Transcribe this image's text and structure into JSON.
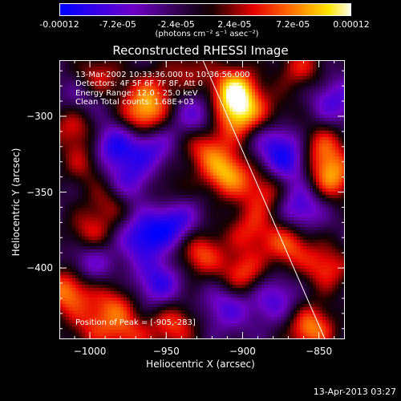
{
  "chart_data": {
    "type": "heatmap",
    "title": "Reconstructed RHESSI Image",
    "xlabel": "Heliocentric X (arcsec)",
    "ylabel": "Heliocentric Y (arcsec)",
    "xlim": [
      -1020,
      -833
    ],
    "ylim": [
      -447,
      -263
    ],
    "xticks": [
      -1000,
      -950,
      -900,
      -850
    ],
    "yticks": [
      -300,
      -350,
      -400
    ],
    "colorbar": {
      "ticks": [
        "-0.00012",
        "-7.2e-05",
        "-2.4e-05",
        "2.4e-05",
        "7.2e-05",
        "0.00012"
      ],
      "min": -0.00012,
      "max": 0.00012,
      "units": "(photons cm⁻² s⁻¹ asec⁻²)"
    },
    "annotations": [
      "13-Mar-2002 10:33:36.000 to 10:36:56.000",
      "Detectors: 4F 5F 6F 7F 8F, Att 0",
      "Energy Range: 12.0 - 25.0 keV",
      "Clean    Total counts: 1.68E+03"
    ],
    "peak_label": "Position of Peak = [-905,-283]",
    "peak": [
      -905,
      -283
    ],
    "limb_line": [
      [
        -926,
        -263
      ],
      [
        -846,
        -447
      ]
    ],
    "blobs": [
      {
        "x": -905,
        "y": -283,
        "v": 1.0
      },
      {
        "x": -903,
        "y": -300,
        "v": 0.8
      },
      {
        "x": -910,
        "y": -338,
        "v": 0.85
      },
      {
        "x": -925,
        "y": -320,
        "v": 0.6
      },
      {
        "x": -965,
        "y": -300,
        "v": 0.75
      },
      {
        "x": -960,
        "y": -285,
        "v": 0.5
      },
      {
        "x": -995,
        "y": -275,
        "v": 0.55
      },
      {
        "x": -1010,
        "y": -305,
        "v": 0.6
      },
      {
        "x": -1003,
        "y": -330,
        "v": 0.45
      },
      {
        "x": -985,
        "y": -355,
        "v": 0.5
      },
      {
        "x": -1000,
        "y": -378,
        "v": 0.55
      },
      {
        "x": -1015,
        "y": -415,
        "v": 0.8
      },
      {
        "x": -985,
        "y": -425,
        "v": 0.55
      },
      {
        "x": -945,
        "y": -438,
        "v": 0.6
      },
      {
        "x": -928,
        "y": -390,
        "v": 0.65
      },
      {
        "x": -900,
        "y": -405,
        "v": 0.65
      },
      {
        "x": -895,
        "y": -375,
        "v": 0.5
      },
      {
        "x": -885,
        "y": -350,
        "v": 0.55
      },
      {
        "x": -870,
        "y": -385,
        "v": 0.65
      },
      {
        "x": -855,
        "y": -440,
        "v": 0.8
      },
      {
        "x": -845,
        "y": -400,
        "v": 0.6
      },
      {
        "x": -842,
        "y": -340,
        "v": 0.8
      },
      {
        "x": -848,
        "y": -320,
        "v": 0.6
      },
      {
        "x": -862,
        "y": -268,
        "v": 0.5
      },
      {
        "x": -975,
        "y": -445,
        "v": 0.5
      },
      {
        "x": -1000,
        "y": -440,
        "v": 0.4
      },
      {
        "x": -950,
        "y": -350,
        "v": 0.3
      },
      {
        "x": -880,
        "y": -300,
        "v": 0.35
      },
      {
        "x": -935,
        "y": -270,
        "v": 0.4
      },
      {
        "x": -985,
        "y": -320,
        "v": -0.7
      },
      {
        "x": -975,
        "y": -345,
        "v": -0.6
      },
      {
        "x": -945,
        "y": -370,
        "v": -0.7
      },
      {
        "x": -965,
        "y": -380,
        "v": -0.7
      },
      {
        "x": -1000,
        "y": -395,
        "v": -0.5
      },
      {
        "x": -955,
        "y": -410,
        "v": -0.6
      },
      {
        "x": -930,
        "y": -300,
        "v": -0.5
      },
      {
        "x": -880,
        "y": -315,
        "v": -0.5
      },
      {
        "x": -870,
        "y": -330,
        "v": -0.6
      },
      {
        "x": -862,
        "y": -360,
        "v": -0.6
      },
      {
        "x": -910,
        "y": -425,
        "v": -0.5
      },
      {
        "x": -880,
        "y": -420,
        "v": -0.5
      },
      {
        "x": -840,
        "y": -290,
        "v": -0.5
      },
      {
        "x": -1005,
        "y": -290,
        "v": -0.45
      },
      {
        "x": -960,
        "y": -320,
        "v": -0.55
      }
    ]
  },
  "footer": "13-Apr-2013 03:27"
}
